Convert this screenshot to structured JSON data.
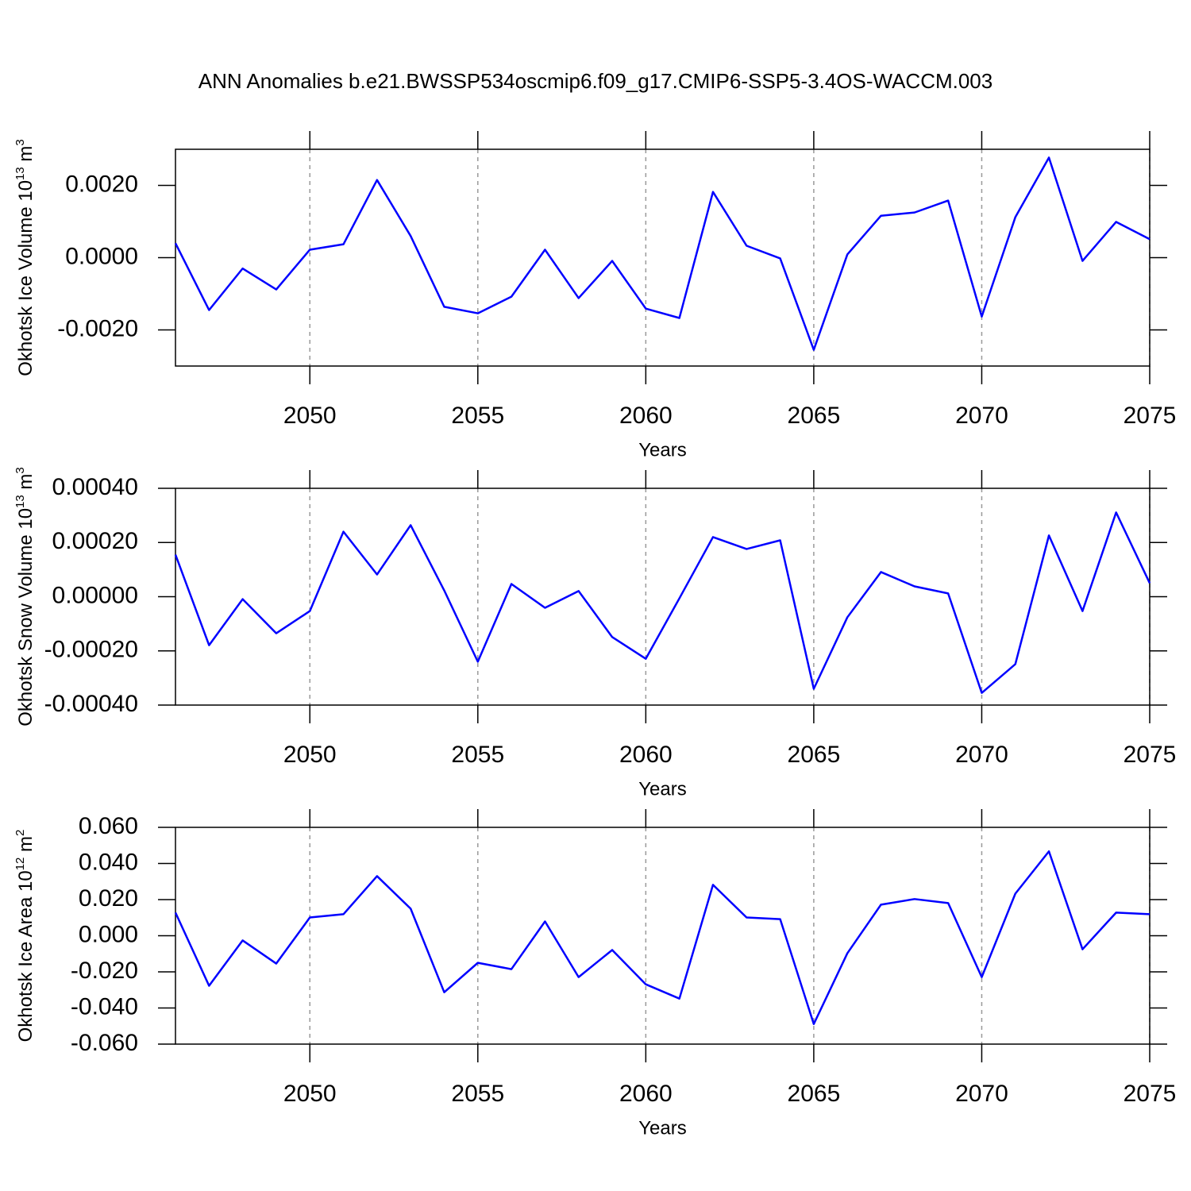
{
  "title": "ANN Anomalies b.e21.BWSSP534oscmip6.f09_g17.CMIP6-SSP5-3.4OS-WACCM.003",
  "chart_data": [
    {
      "type": "line",
      "ylabel": [
        "Okhotsk Ice Volume 10",
        "13",
        " m",
        "3"
      ],
      "xlabel": "Years",
      "color": "#0000ff",
      "x": [
        2046,
        2047,
        2048,
        2049,
        2050,
        2051,
        2052,
        2053,
        2054,
        2055,
        2056,
        2057,
        2058,
        2059,
        2060,
        2061,
        2062,
        2063,
        2064,
        2065,
        2066,
        2067,
        2068,
        2069,
        2070,
        2071,
        2072,
        2073,
        2074,
        2075
      ],
      "values": [
        0.0004,
        -0.00145,
        -0.0003,
        -0.00088,
        0.00022,
        0.00037,
        0.00215,
        0.0006,
        -0.00136,
        -0.00154,
        -0.00108,
        0.00022,
        -0.00112,
        -9e-05,
        -0.00141,
        -0.00167,
        0.00182,
        0.00033,
        -2e-05,
        -0.00255,
        9e-05,
        0.00116,
        0.00125,
        0.00158,
        -0.00163,
        0.00112,
        0.00277,
        -9e-05,
        0.00099,
        0.00051
      ],
      "xlim": [
        2046,
        2075
      ],
      "xticks": [
        2050,
        2055,
        2060,
        2065,
        2070,
        2075
      ],
      "xgrid": true,
      "ylim": [
        -0.003,
        0.003
      ],
      "yticks": [
        {
          "value": -0.002,
          "label": "-0.0020"
        },
        {
          "value": 0,
          "label": "0.0000"
        },
        {
          "value": 0.002,
          "label": "0.0020"
        }
      ]
    },
    {
      "type": "line",
      "ylabel": [
        "Okhotsk Snow Volume 10",
        "13",
        " m",
        "3"
      ],
      "xlabel": "Years",
      "color": "#0000ff",
      "x": [
        2046,
        2047,
        2048,
        2049,
        2050,
        2051,
        2052,
        2053,
        2054,
        2055,
        2056,
        2057,
        2058,
        2059,
        2060,
        2061,
        2062,
        2063,
        2064,
        2065,
        2066,
        2067,
        2068,
        2069,
        2070,
        2071,
        2072,
        2073,
        2074,
        2075
      ],
      "values": [
        0.000155,
        -0.000179,
        -9e-06,
        -0.000135,
        -5.3e-05,
        0.00024,
        8.2e-05,
        0.000264,
        2.3e-05,
        -0.00024,
        4.7e-05,
        -4.1e-05,
        2.1e-05,
        -0.000149,
        -0.000229,
        -6e-06,
        0.00022,
        0.000176,
        0.000208,
        -0.00034,
        -7.6e-05,
        9.1e-05,
        3.8e-05,
        1.2e-05,
        -0.000355,
        -0.000249,
        0.000226,
        -5.3e-05,
        0.000311,
        5e-05
      ],
      "xlim": [
        2046,
        2075
      ],
      "xticks": [
        2050,
        2055,
        2060,
        2065,
        2070,
        2075
      ],
      "xgrid": true,
      "ylim": [
        -0.0004,
        0.0004
      ],
      "yticks": [
        {
          "value": -0.0004,
          "label": "-0.00040"
        },
        {
          "value": -0.0002,
          "label": "-0.00020"
        },
        {
          "value": 0,
          "label": "0.00000"
        },
        {
          "value": 0.0002,
          "label": "0.00020"
        },
        {
          "value": 0.0004,
          "label": "0.00040"
        }
      ]
    },
    {
      "type": "line",
      "ylabel": [
        "Okhotsk Ice Area 10",
        "12",
        " m",
        "2"
      ],
      "xlabel": "Years",
      "color": "#0000ff",
      "x": [
        2046,
        2047,
        2048,
        2049,
        2050,
        2051,
        2052,
        2053,
        2054,
        2055,
        2056,
        2057,
        2058,
        2059,
        2060,
        2061,
        2062,
        2063,
        2064,
        2065,
        2066,
        2067,
        2068,
        2069,
        2070,
        2071,
        2072,
        2073,
        2074,
        2075
      ],
      "values": [
        0.0128,
        -0.0277,
        -0.0026,
        -0.0154,
        0.0101,
        0.0119,
        0.033,
        0.015,
        -0.0313,
        -0.015,
        -0.0185,
        0.0079,
        -0.0229,
        -0.0079,
        -0.0269,
        -0.0348,
        0.0282,
        0.0101,
        0.0092,
        -0.0489,
        -0.0097,
        0.0172,
        0.0203,
        0.0181,
        -0.0229,
        0.0233,
        0.0467,
        -0.0075,
        0.0128,
        0.0119
      ],
      "xlim": [
        2046,
        2075
      ],
      "xticks": [
        2050,
        2055,
        2060,
        2065,
        2070,
        2075
      ],
      "xgrid": true,
      "ylim": [
        -0.06,
        0.06
      ],
      "yticks": [
        {
          "value": -0.06,
          "label": "-0.060"
        },
        {
          "value": -0.04,
          "label": "-0.040"
        },
        {
          "value": -0.02,
          "label": "-0.020"
        },
        {
          "value": 0,
          "label": "0.000"
        },
        {
          "value": 0.02,
          "label": "0.020"
        },
        {
          "value": 0.04,
          "label": "0.040"
        },
        {
          "value": 0.06,
          "label": "0.060"
        }
      ]
    }
  ]
}
